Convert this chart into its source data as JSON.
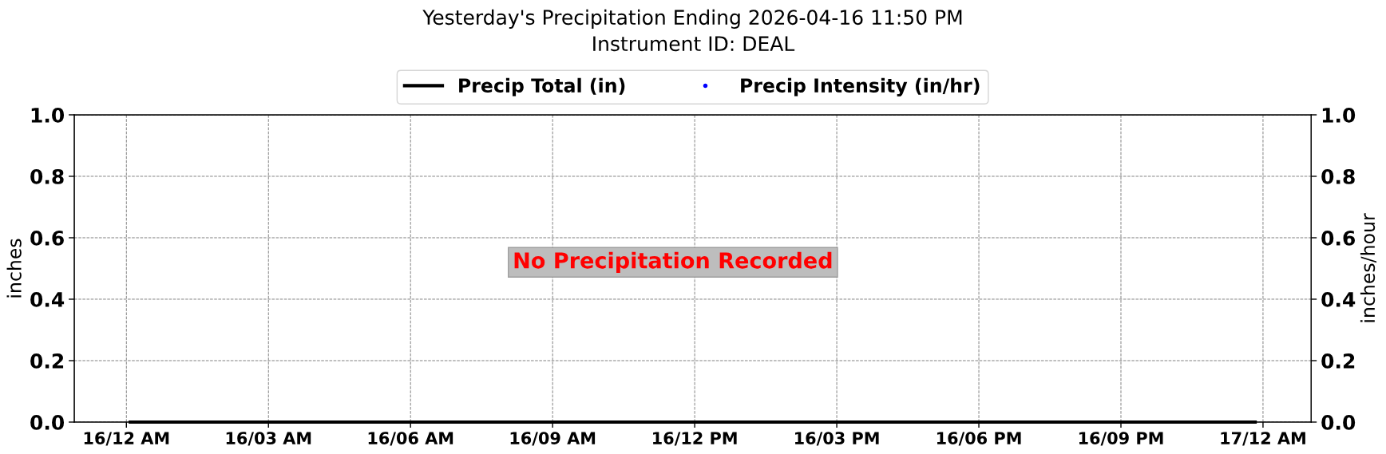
{
  "chart_data": {
    "type": "line",
    "title": "Yesterday's Precipitation Ending 2026-04-16 11:50 PM",
    "subtitle": "Instrument ID: DEAL",
    "ylabel": "inches",
    "y2label": "inches/hour",
    "x": [
      "2026-04-16T00:05",
      "2026-04-16T23:50"
    ],
    "series": [
      {
        "name": "Precip Total (in)",
        "color": "#000000",
        "values": [
          0,
          0
        ]
      },
      {
        "name": "Precip Intensity (in/hr)",
        "type": "scatter",
        "color": "#0000ff",
        "marker": "circle",
        "values": [
          null,
          null
        ]
      }
    ],
    "xlim": [
      "2026-04-15T22:54",
      "2026-04-17T01:01"
    ],
    "xticks": [
      {
        "value": "2026-04-16T00:00",
        "label": "16/12 AM"
      },
      {
        "value": "2026-04-16T03:00",
        "label": "16/03 AM"
      },
      {
        "value": "2026-04-16T06:00",
        "label": "16/06 AM"
      },
      {
        "value": "2026-04-16T09:00",
        "label": "16/09 AM"
      },
      {
        "value": "2026-04-16T12:00",
        "label": "16/12 PM"
      },
      {
        "value": "2026-04-16T15:00",
        "label": "16/03 PM"
      },
      {
        "value": "2026-04-16T18:00",
        "label": "16/06 PM"
      },
      {
        "value": "2026-04-16T21:00",
        "label": "16/09 PM"
      },
      {
        "value": "2026-04-17T00:00",
        "label": "17/12 AM"
      }
    ],
    "ylim": [
      0,
      1
    ],
    "yticks": [
      {
        "value": 0,
        "label": "0.0"
      },
      {
        "value": 0.2,
        "label": "0.2"
      },
      {
        "value": 0.4,
        "label": "0.4"
      },
      {
        "value": 0.6,
        "label": "0.6"
      },
      {
        "value": 0.8,
        "label": "0.8"
      },
      {
        "value": 1,
        "label": "1.0"
      }
    ],
    "y2lim": [
      0,
      1
    ],
    "y2ticks": [
      {
        "value": 0,
        "label": "0.0"
      },
      {
        "value": 0.2,
        "label": "0.2"
      },
      {
        "value": 0.4,
        "label": "0.4"
      },
      {
        "value": 0.6,
        "label": "0.6"
      },
      {
        "value": 0.8,
        "label": "0.8"
      },
      {
        "value": 1,
        "label": "1.0"
      }
    ],
    "annotations": [
      "No Precipitation Recorded"
    ],
    "grid": true,
    "legend": "top"
  }
}
